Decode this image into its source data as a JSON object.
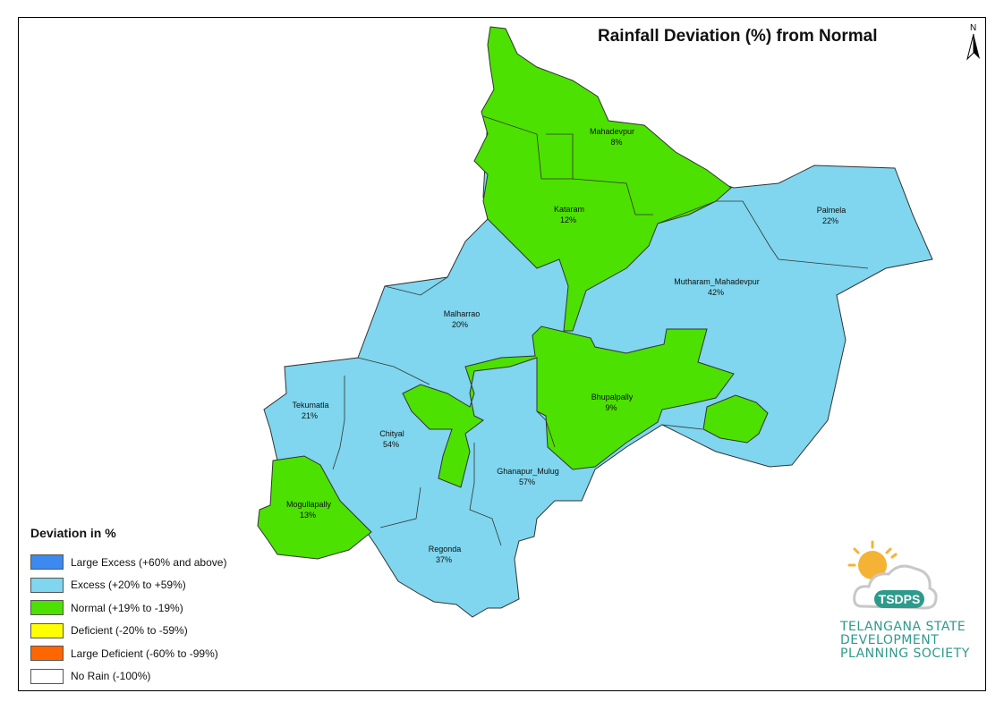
{
  "title": "Rainfall Deviation (%) from Normal",
  "north_arrow": {
    "label": "N"
  },
  "legend": {
    "title": "Deviation in %",
    "items": [
      {
        "label": "Large Excess (+60% and above)",
        "color": "#3c8af0"
      },
      {
        "label": "Excess (+20% to +59%)",
        "color": "#7fd6ee"
      },
      {
        "label": "Normal (+19% to -19%)",
        "color": "#4ce100"
      },
      {
        "label": "Deficient (-20% to -59%)",
        "color": "#ffff00"
      },
      {
        "label": "Large Deficient (-60% to -99%)",
        "color": "#ff6600"
      },
      {
        "label": "No Rain (-100%)",
        "color": "#ffffff"
      }
    ]
  },
  "mandals": [
    {
      "name": "Mahadevpur",
      "value": "8%",
      "category": "Normal"
    },
    {
      "name": "Kataram",
      "value": "12%",
      "category": "Normal"
    },
    {
      "name": "Palmela",
      "value": "22%",
      "category": "Excess"
    },
    {
      "name": "Mutharam_Mahadevpur",
      "value": "42%",
      "category": "Excess"
    },
    {
      "name": "Malharrao",
      "value": "20%",
      "category": "Excess"
    },
    {
      "name": "Bhupalpally",
      "value": "9%",
      "category": "Normal"
    },
    {
      "name": "Tekumatla",
      "value": "21%",
      "category": "Excess"
    },
    {
      "name": "Chityal",
      "value": "54%",
      "category": "Excess"
    },
    {
      "name": "Ghanapur_Mulug",
      "value": "57%",
      "category": "Excess"
    },
    {
      "name": "Mogullapally",
      "value": "13%",
      "category": "Normal"
    },
    {
      "name": "Regonda",
      "value": "37%",
      "category": "Excess"
    }
  ],
  "logo": {
    "acronym": "TSDPS",
    "lines": [
      "TELANGANA STATE",
      "DEVELOPMENT",
      "PLANNING SOCIETY"
    ],
    "color": "#2e9a8c"
  }
}
